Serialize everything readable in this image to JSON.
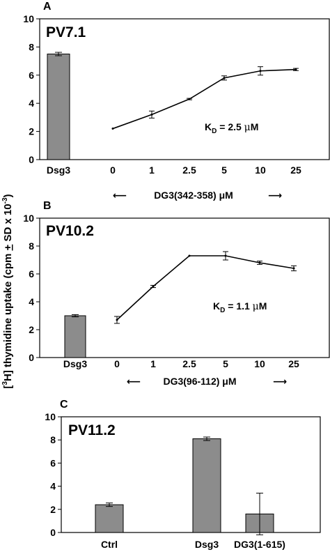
{
  "ylabel_parts": [
    "[",
    "3",
    "H] thymidine uptake (cpm ",
    "+",
    " SD x 10",
    "-3",
    ")"
  ],
  "chart_data": [
    {
      "panel": "A",
      "title": "PV7.1",
      "type": "bar+line",
      "ylim": [
        0,
        10
      ],
      "yticks": [
        "0",
        "2",
        "4",
        "6",
        "8",
        "10"
      ],
      "bar": {
        "category": "Dsg3",
        "value": 7.5,
        "error": 0.12
      },
      "line": {
        "x": [
          "0",
          "1",
          "2.5",
          "5",
          "10",
          "25"
        ],
        "values": [
          2.2,
          3.2,
          4.3,
          5.8,
          6.3,
          6.4
        ],
        "errors": [
          0.0,
          0.25,
          0.05,
          0.15,
          0.3,
          0.08
        ]
      },
      "annotation": {
        "k": "K",
        "sub": "D",
        "rest": " = 2.5 ",
        "mu": "μ",
        "unit": "M"
      },
      "xlabel": {
        "left_arrow": "⟵",
        "text": "DG3(342-358) μM",
        "right_arrow": "⟶"
      }
    },
    {
      "panel": "B",
      "title": "PV10.2",
      "type": "bar+line",
      "ylim": [
        0,
        10
      ],
      "yticks": [
        "0",
        "2",
        "4",
        "6",
        "8",
        "10"
      ],
      "bar": {
        "category": "Dsg3",
        "value": 3.0,
        "error": 0.08
      },
      "line": {
        "x": [
          "0",
          "1",
          "2.5",
          "5",
          "10",
          "25"
        ],
        "values": [
          2.7,
          5.1,
          7.3,
          7.3,
          6.8,
          6.4
        ],
        "errors": [
          0.25,
          0.08,
          0.0,
          0.3,
          0.12,
          0.18
        ]
      },
      "annotation": {
        "k": "K",
        "sub": "D",
        "rest": " = 1.1 ",
        "mu": "μ",
        "unit": "M"
      },
      "xlabel": {
        "left_arrow": "⟵",
        "text": "DG3(96-112)  μM",
        "right_arrow": "⟶"
      }
    },
    {
      "panel": "C",
      "title": "PV11.2",
      "type": "bar",
      "ylim": [
        0,
        10
      ],
      "yticks": [
        "0",
        "2",
        "4",
        "6",
        "8",
        "10"
      ],
      "categories": [
        "Ctrl",
        "Dsg3",
        "DG3(1-615)"
      ],
      "values": [
        2.4,
        8.1,
        1.6
      ],
      "errors": [
        0.15,
        0.15,
        1.8
      ]
    }
  ]
}
